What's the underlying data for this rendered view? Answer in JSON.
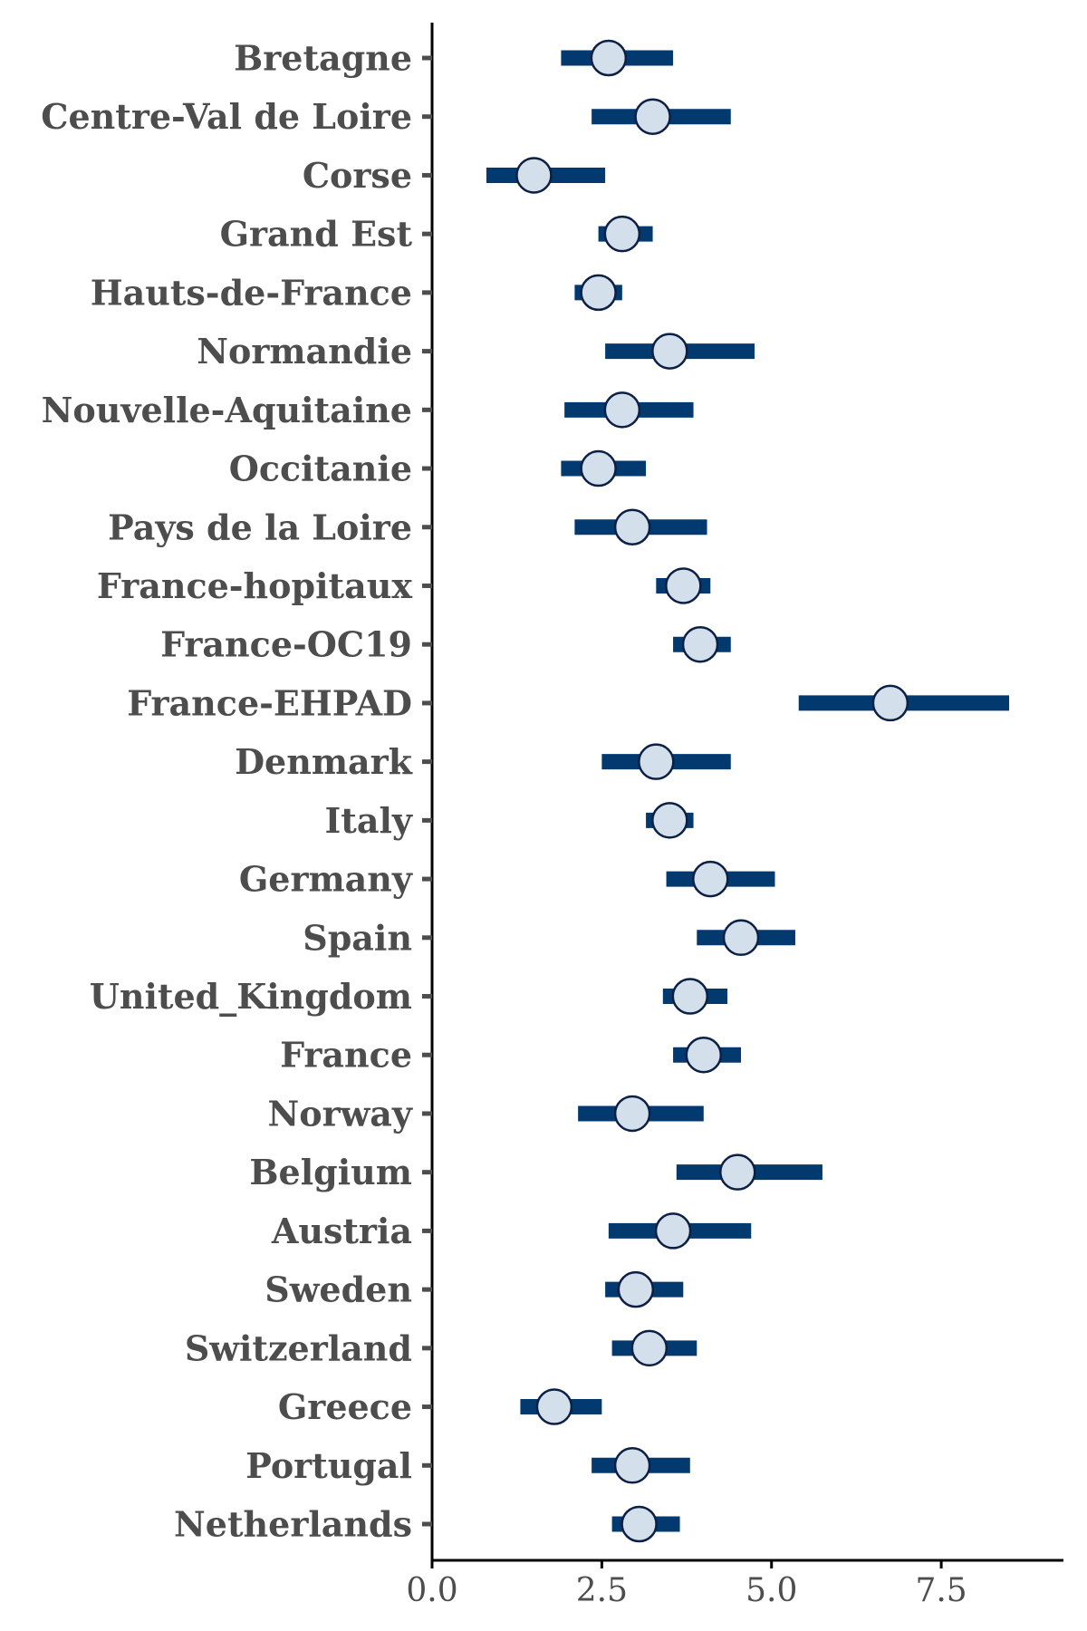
{
  "chart_data": {
    "type": "scatter",
    "orientation": "horizontal",
    "title": "",
    "xlabel": "",
    "ylabel": "",
    "xlim": [
      0,
      9.3
    ],
    "xticks": [
      0,
      2.5,
      5,
      7.5
    ],
    "xtick_labels": [
      "0.0",
      "2.5",
      "5.0",
      "7.5"
    ],
    "grid": false,
    "colors": {
      "interval": "#023a70",
      "point_fill": "#d3e0eb",
      "point_stroke": "#0c1f45",
      "axis": "#000000",
      "text": "#4d4d4d"
    },
    "categories": [
      "Bretagne",
      "Centre-Val de Loire",
      "Corse",
      "Grand Est",
      "Hauts-de-France",
      "Normandie",
      "Nouvelle-Aquitaine",
      "Occitanie",
      "Pays de la Loire",
      "France-hopitaux",
      "France-OC19",
      "France-EHPAD",
      "Denmark",
      "Italy",
      "Germany",
      "Spain",
      "United_Kingdom",
      "France",
      "Norway",
      "Belgium",
      "Austria",
      "Sweden",
      "Switzerland",
      "Greece",
      "Portugal",
      "Netherlands"
    ],
    "estimate": [
      2.6,
      3.25,
      1.5,
      2.8,
      2.45,
      3.5,
      2.8,
      2.45,
      2.95,
      3.7,
      3.95,
      6.75,
      3.3,
      3.5,
      4.1,
      4.55,
      3.8,
      4.0,
      2.95,
      4.5,
      3.55,
      3.0,
      3.2,
      1.8,
      2.95,
      3.05
    ],
    "lower": [
      1.9,
      2.35,
      0.8,
      2.45,
      2.1,
      2.55,
      1.95,
      1.9,
      2.1,
      3.3,
      3.55,
      5.4,
      2.5,
      3.15,
      3.45,
      3.9,
      3.4,
      3.55,
      2.15,
      3.6,
      2.6,
      2.55,
      2.65,
      1.3,
      2.35,
      2.65
    ],
    "upper": [
      3.55,
      4.4,
      2.55,
      3.25,
      2.8,
      4.75,
      3.85,
      3.15,
      4.05,
      4.1,
      4.4,
      8.5,
      4.4,
      3.85,
      5.05,
      5.35,
      4.35,
      4.55,
      4.0,
      5.75,
      4.7,
      3.7,
      3.9,
      2.5,
      3.8,
      3.65
    ]
  }
}
